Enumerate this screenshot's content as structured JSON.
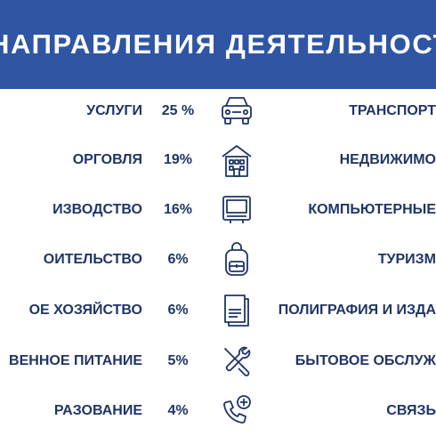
{
  "header": {
    "title": "НАПРАВЛЕНИЯ ДЕЯТЕЛЬНОСТИ РЕС"
  },
  "colors": {
    "header_bg": "#2f55a4",
    "text": "#1f3566",
    "icon_stroke": "#1f3566"
  },
  "rows": [
    {
      "left": "УСЛУГИ",
      "percent": "25 %",
      "icon": "car-icon",
      "right": "ТРАНСПОРТ"
    },
    {
      "left": "ОРГОВЛЯ",
      "percent": "19%",
      "icon": "buildings-icon",
      "right": "НЕДВИЖИМО"
    },
    {
      "left": "ИЗВОДСТВО",
      "percent": "16%",
      "icon": "monitor-icon",
      "right": "КОМПЬЮТЕРНЫЕ"
    },
    {
      "left": "ОИТЕЛЬСТВО",
      "percent": "6%",
      "icon": "backpack-icon",
      "right": "ТУРИЗМ"
    },
    {
      "left": "ОЕ ХОЗЯЙСТВО",
      "percent": "6%",
      "icon": "book-icon",
      "right": "ПОЛИГРАФИЯ И ИЗДА"
    },
    {
      "left": "ВЕННОЕ ПИТАНИЕ",
      "percent": "5%",
      "icon": "tools-icon",
      "right": "БЫТОВОЕ ОБСЛУЖ"
    },
    {
      "left": "РАЗОВАНИЕ",
      "percent": "4%",
      "icon": "phone-plus-icon",
      "right": "СВЯЗЬ"
    }
  ]
}
